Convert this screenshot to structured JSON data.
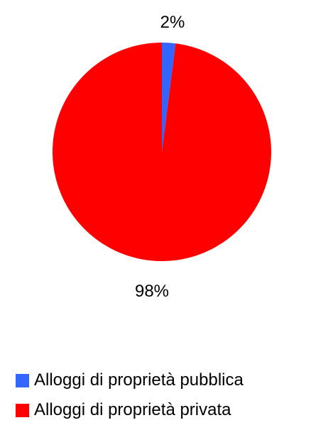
{
  "chart_data": {
    "type": "pie",
    "categories": [
      "Alloggi di proprietà pubblica",
      "Alloggi di proprietà privata"
    ],
    "values": [
      2,
      98
    ],
    "data_labels": [
      "2%",
      "98%"
    ],
    "colors": [
      "#3366ff",
      "#ff0000"
    ],
    "title": "",
    "legend_position": "bottom-left"
  }
}
